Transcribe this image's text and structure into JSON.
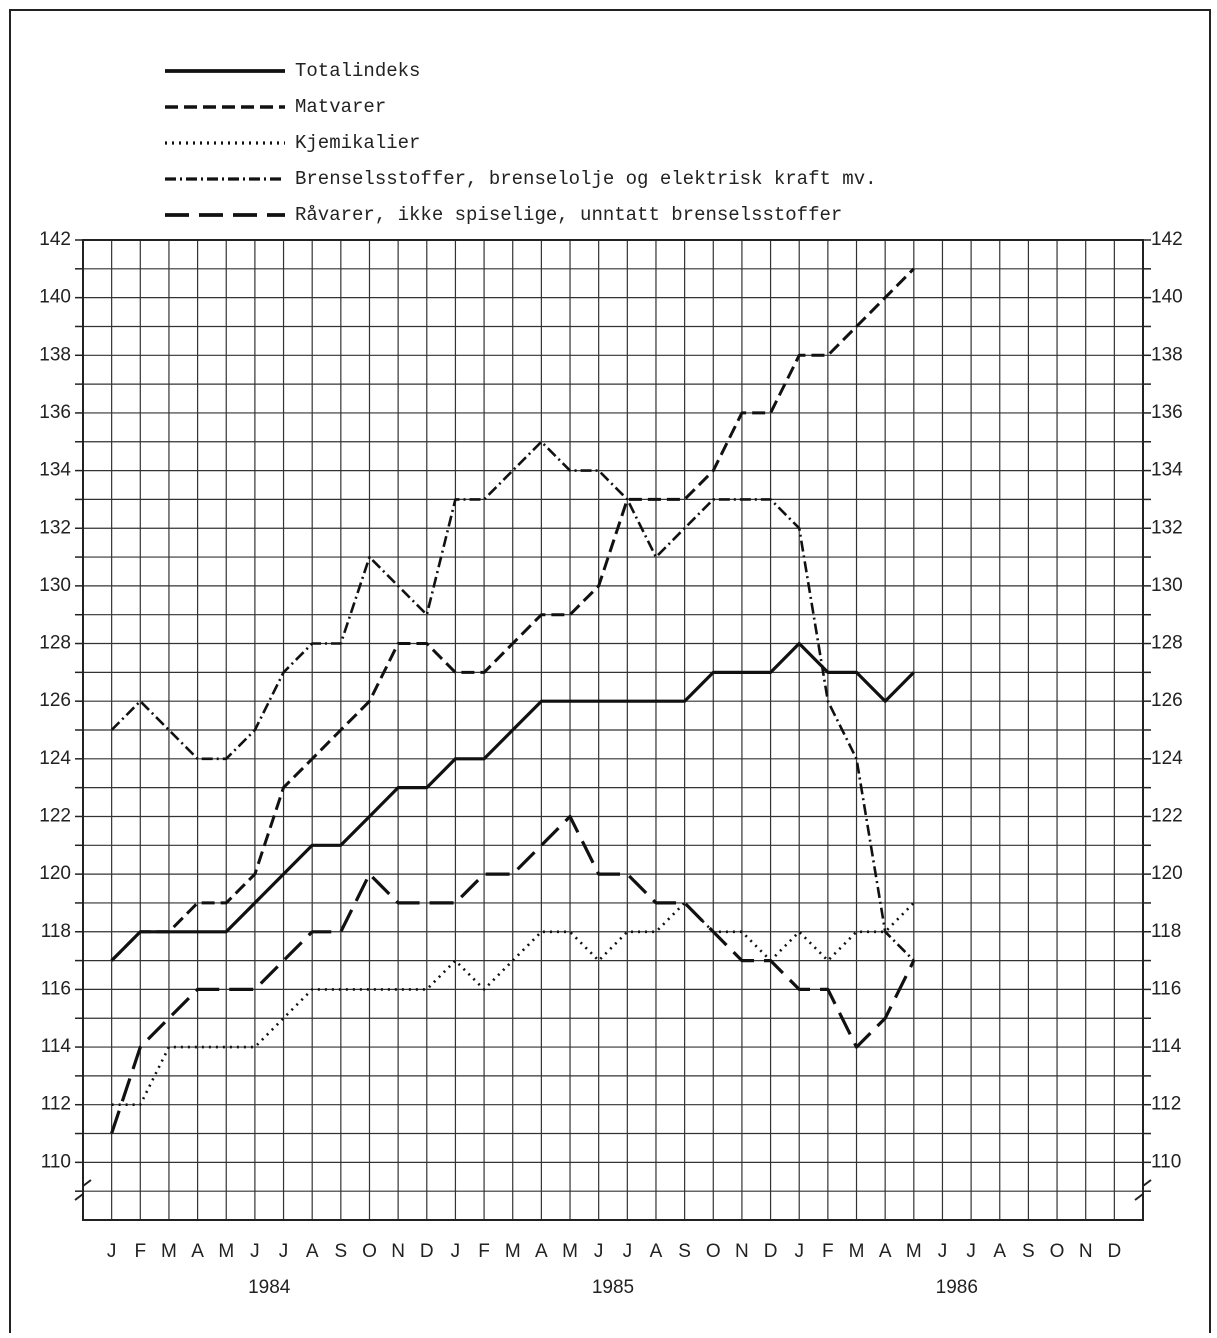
{
  "chart_data": {
    "type": "line",
    "categories": [
      "J",
      "F",
      "M",
      "A",
      "M",
      "J",
      "J",
      "A",
      "S",
      "O",
      "N",
      "D",
      "J",
      "F",
      "M",
      "A",
      "M",
      "J",
      "J",
      "A",
      "S",
      "O",
      "N",
      "D",
      "J",
      "F",
      "M",
      "A",
      "M",
      "J",
      "J",
      "A",
      "S",
      "O",
      "N",
      "D"
    ],
    "year_labels": [
      "1984",
      "1985",
      "1986"
    ],
    "ylim": [
      108,
      142
    ],
    "yticks": [
      110,
      112,
      114,
      116,
      118,
      120,
      122,
      124,
      126,
      128,
      130,
      132,
      134,
      136,
      138,
      140,
      142
    ],
    "minor_yticks": [
      109,
      111,
      113,
      115,
      117,
      119,
      121,
      123,
      125,
      127,
      129,
      131,
      133,
      135,
      137,
      139,
      141
    ],
    "grid": true,
    "series": [
      {
        "name": "Totalindeks",
        "color": "#111",
        "dash": "solid",
        "values": [
          117,
          118,
          118,
          118,
          118,
          119,
          120,
          121,
          121,
          122,
          123,
          123,
          124,
          124,
          125,
          126,
          126,
          126,
          126,
          126,
          126,
          127,
          127,
          127,
          128,
          127,
          127,
          126,
          127,
          null,
          null,
          null,
          null,
          null,
          null,
          null
        ]
      },
      {
        "name": "Matvarer",
        "color": "#111",
        "dash": "dashed",
        "values": [
          117,
          118,
          118,
          119,
          119,
          120,
          123,
          124,
          125,
          126,
          128,
          128,
          127,
          127,
          128,
          129,
          129,
          130,
          133,
          133,
          133,
          134,
          136,
          136,
          138,
          138,
          139,
          140,
          141,
          null,
          null,
          null,
          null,
          null,
          null,
          null
        ]
      },
      {
        "name": "Kjemikalier",
        "color": "#111",
        "dash": "dotted",
        "values": [
          112,
          112,
          114,
          114,
          114,
          114,
          115,
          116,
          116,
          116,
          116,
          116,
          117,
          116,
          117,
          118,
          118,
          117,
          118,
          118,
          119,
          118,
          118,
          117,
          118,
          117,
          118,
          118,
          119,
          null,
          null,
          null,
          null,
          null,
          null,
          null
        ]
      },
      {
        "name": "Brenselsstoffer, brenselolje og elektrisk kraft mv.",
        "color": "#111",
        "dash": "dashdot",
        "values": [
          125,
          126,
          125,
          124,
          124,
          125,
          127,
          128,
          128,
          131,
          130,
          129,
          133,
          133,
          134,
          135,
          134,
          134,
          133,
          131,
          132,
          133,
          133,
          133,
          132,
          126,
          124,
          118,
          117,
          null,
          null,
          null,
          null,
          null,
          null,
          null
        ]
      },
      {
        "name": "Råvarer, ikke spiselige, unntatt brenselsstoffer",
        "color": "#111",
        "dash": "longdash",
        "values": [
          111,
          114,
          115,
          116,
          116,
          116,
          117,
          118,
          118,
          120,
          119,
          119,
          119,
          120,
          120,
          121,
          122,
          120,
          120,
          119,
          119,
          118,
          117,
          117,
          116,
          116,
          114,
          115,
          117,
          null,
          null,
          null,
          null,
          null,
          null,
          null
        ]
      }
    ]
  }
}
